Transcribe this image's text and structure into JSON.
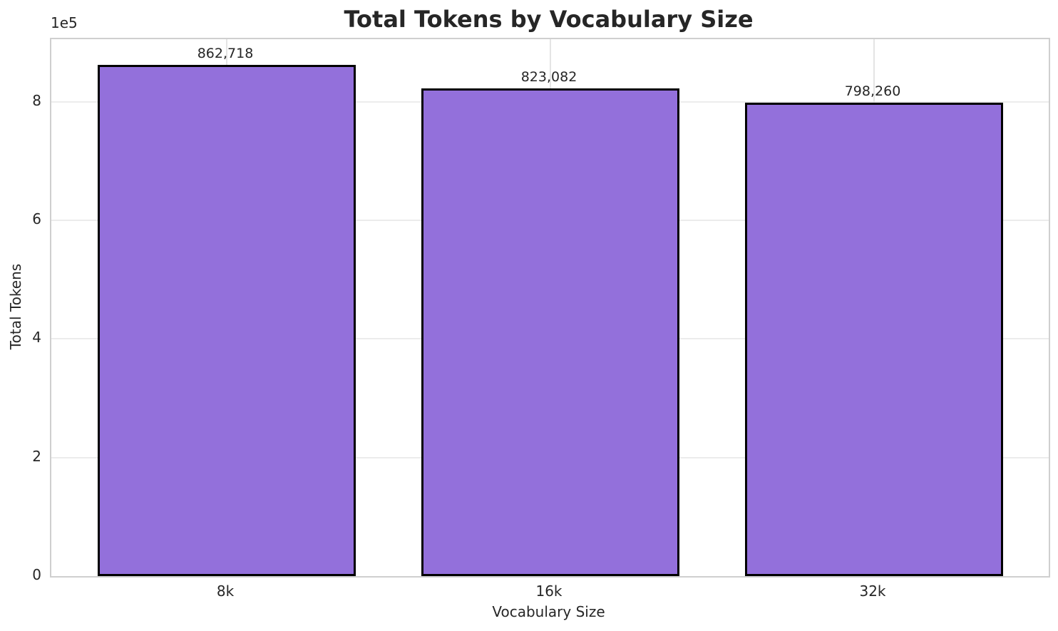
{
  "chart_data": {
    "type": "bar",
    "title": "Total Tokens by Vocabulary Size",
    "xlabel": "Vocabulary Size",
    "ylabel": "Total Tokens",
    "categories": [
      "8k",
      "16k",
      "32k"
    ],
    "values": [
      862718,
      823082,
      798260
    ],
    "bar_labels": [
      "862,718",
      "823,082",
      "798,260"
    ],
    "ylim": [
      0,
      905854
    ],
    "yticks": {
      "values": [
        0,
        200000,
        400000,
        600000,
        800000
      ],
      "labels": [
        "0",
        "2",
        "4",
        "6",
        "8"
      ],
      "offset_label": "1e5"
    },
    "grid": true,
    "legend": "none",
    "bar_color": "#9370DB",
    "bar_edge_color": "#000000",
    "background_color": "#ffffff"
  }
}
